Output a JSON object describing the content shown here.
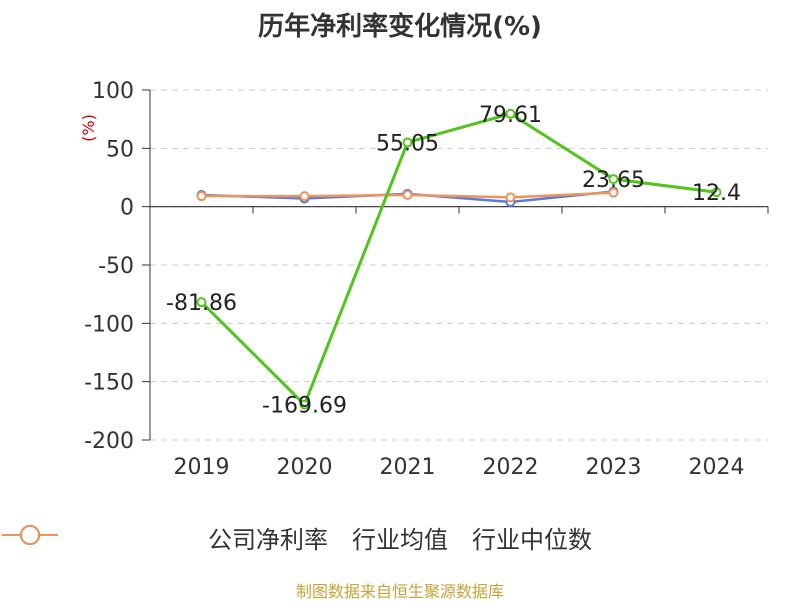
{
  "title": "历年净利率变化情况(%)",
  "source": "制图数据来自恒生聚源数据库",
  "colors": {
    "company": "#52c41a",
    "industry_avg": "#5b7bd5",
    "industry_median": "#f0935a"
  },
  "chart_data": {
    "type": "line",
    "title": "历年净利率变化情况(%)",
    "ylabel": "(%)",
    "xlabel": "",
    "categories": [
      "2019",
      "2020",
      "2021",
      "2022",
      "2023",
      "2024"
    ],
    "ylim": [
      -200,
      100
    ],
    "yticks": [
      100,
      50,
      0,
      -50,
      -100,
      -150,
      -200
    ],
    "grid": true,
    "legend_position": "bottom",
    "series": [
      {
        "name": "公司净利率",
        "values": [
          -81.86,
          -169.69,
          55.05,
          79.61,
          23.65,
          12.4
        ],
        "labels": [
          "-81.86",
          "-169.69",
          "55.05",
          "79.61",
          "23.65",
          "12.4"
        ]
      },
      {
        "name": "行业均值",
        "values": [
          10,
          7,
          11,
          4,
          13,
          null
        ]
      },
      {
        "name": "行业中位数",
        "values": [
          9,
          9,
          10,
          8,
          12,
          null
        ]
      }
    ]
  }
}
